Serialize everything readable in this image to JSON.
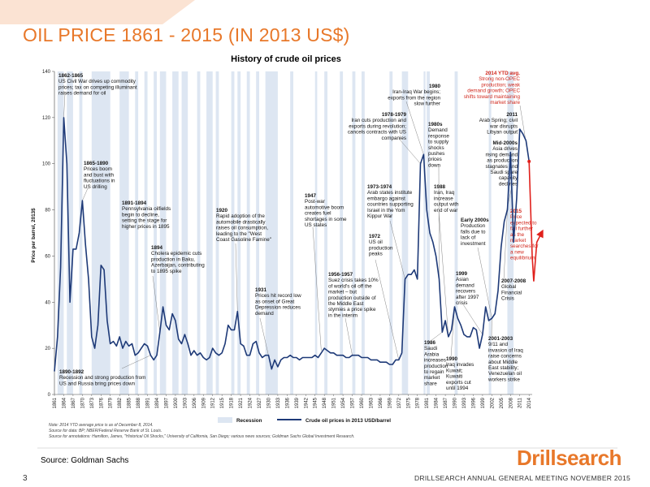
{
  "slide": {
    "title": "OIL PRICE 1861 - 2015  (IN 2013 US$)",
    "source": "Source: Goldman Sachs",
    "page_number": "3",
    "footer": "DRILLSEARCH ANNUAL GENERAL MEETING NOVEMBER  2015",
    "logo_text": "Drillsearch",
    "accent_color": "#e8782a"
  },
  "chart_data": {
    "type": "line",
    "title": "History of crude oil prices",
    "ylabel": "Price per barrel, 2013$",
    "ylim": [
      0,
      140
    ],
    "xlim": [
      1861,
      2015
    ],
    "yticks": [
      0,
      20,
      40,
      60,
      80,
      100,
      120,
      140
    ],
    "xticks": [
      "1861",
      "1864",
      "1867",
      "1870",
      "1873",
      "1876",
      "1879",
      "1882",
      "1885",
      "1888",
      "1891",
      "1894",
      "1897",
      "1900",
      "1903",
      "1906",
      "1909",
      "1912",
      "1915",
      "1918",
      "1921",
      "1924",
      "1927",
      "1930",
      "1933",
      "1936",
      "1939",
      "1942",
      "1945",
      "1948",
      "1951",
      "1954",
      "1957",
      "1960",
      "1963",
      "1966",
      "1969",
      "1972",
      "1975",
      "1978",
      "1981",
      "1984",
      "1987",
      "1990",
      "1993",
      "1996",
      "1999",
      "2002",
      "2005",
      "2008",
      "2011",
      "2014"
    ],
    "legend": [
      "Recession",
      "Crude oil prices in 2013 USD/barrel"
    ],
    "line_color": "#1e3a78",
    "recession_color": "#dde6f2",
    "forecast_color": "#e0201b",
    "series": [
      {
        "name": "Crude oil prices in 2013 USD/barrel",
        "x": [
          1861,
          1862,
          1863,
          1864,
          1865,
          1866,
          1867,
          1868,
          1869,
          1870,
          1871,
          1872,
          1873,
          1874,
          1875,
          1876,
          1877,
          1878,
          1879,
          1880,
          1881,
          1882,
          1883,
          1884,
          1885,
          1886,
          1887,
          1888,
          1889,
          1890,
          1891,
          1892,
          1893,
          1894,
          1895,
          1896,
          1897,
          1898,
          1899,
          1900,
          1901,
          1902,
          1903,
          1904,
          1905,
          1906,
          1907,
          1908,
          1909,
          1910,
          1911,
          1912,
          1913,
          1914,
          1915,
          1916,
          1917,
          1918,
          1919,
          1920,
          1921,
          1922,
          1923,
          1924,
          1925,
          1926,
          1927,
          1928,
          1929,
          1930,
          1931,
          1932,
          1933,
          1934,
          1935,
          1936,
          1937,
          1938,
          1939,
          1940,
          1941,
          1942,
          1943,
          1944,
          1945,
          1946,
          1947,
          1948,
          1949,
          1950,
          1951,
          1952,
          1953,
          1954,
          1955,
          1956,
          1957,
          1958,
          1959,
          1960,
          1961,
          1962,
          1963,
          1964,
          1965,
          1966,
          1967,
          1968,
          1969,
          1970,
          1971,
          1972,
          1973,
          1974,
          1975,
          1976,
          1977,
          1978,
          1979,
          1980,
          1981,
          1982,
          1983,
          1984,
          1985,
          1986,
          1987,
          1988,
          1989,
          1990,
          1991,
          1992,
          1993,
          1994,
          1995,
          1996,
          1997,
          1998,
          1999,
          2000,
          2001,
          2002,
          2003,
          2004,
          2005,
          2006,
          2007,
          2008,
          2009,
          2010,
          2011,
          2012,
          2013,
          2014
        ],
        "values": [
          10,
          25,
          55,
          120,
          100,
          40,
          63,
          63,
          70,
          84,
          65,
          50,
          25,
          20,
          30,
          56,
          54,
          32,
          22,
          23,
          21,
          25,
          20,
          23,
          21,
          22,
          17,
          18,
          20,
          22,
          21,
          17,
          15,
          17,
          27,
          38,
          30,
          28,
          35,
          32,
          24,
          22,
          26,
          22,
          17,
          19,
          17,
          18,
          16,
          15,
          16,
          20,
          18,
          17,
          18,
          22,
          30,
          28,
          28,
          36,
          22,
          21,
          17,
          17,
          22,
          23,
          18,
          16,
          17,
          17,
          11,
          15,
          12,
          15,
          16,
          16,
          17,
          16,
          16,
          15,
          16,
          16,
          16,
          16,
          17,
          16,
          18,
          20,
          19,
          18,
          18,
          17,
          17,
          17,
          16,
          16,
          17,
          17,
          17,
          16,
          16,
          16,
          15,
          15,
          15,
          14,
          14,
          14,
          13,
          13,
          15,
          15,
          18,
          50,
          52,
          52,
          54,
          50,
          100,
          104,
          80,
          70,
          66,
          60,
          50,
          27,
          32,
          25,
          28,
          38,
          33,
          30,
          26,
          25,
          25,
          29,
          28,
          20,
          26,
          38,
          32,
          33,
          35,
          45,
          64,
          75,
          80,
          105,
          66,
          85,
          115,
          113,
          110,
          101
        ]
      },
      {
        "name": "",
        "x": [
          2014,
          2015,
          2015.5,
          2016.5,
          2018
        ],
        "values": [
          101,
          60,
          49,
          66,
          70
        ]
      }
    ],
    "recessions": [
      [
        1862,
        1864
      ],
      [
        1865,
        1867
      ],
      [
        1869,
        1870
      ],
      [
        1873,
        1879
      ],
      [
        1882,
        1885
      ],
      [
        1887,
        1888
      ],
      [
        1890,
        1891
      ],
      [
        1893,
        1894
      ],
      [
        1895,
        1897
      ],
      [
        1899,
        1901
      ],
      [
        1902,
        1904
      ],
      [
        1907,
        1908
      ],
      [
        1910,
        1912
      ],
      [
        1913,
        1914
      ],
      [
        1918,
        1919
      ],
      [
        1920,
        1921
      ],
      [
        1923,
        1924
      ],
      [
        1926,
        1927
      ],
      [
        1929,
        1933
      ],
      [
        1937,
        1938
      ],
      [
        1945,
        1945.7
      ],
      [
        1948,
        1949
      ],
      [
        1953,
        1954
      ],
      [
        1957,
        1958
      ],
      [
        1960,
        1961
      ],
      [
        1969,
        1970
      ],
      [
        1973,
        1975
      ],
      [
        1980,
        1980.6
      ],
      [
        1981,
        1982
      ],
      [
        1990,
        1991
      ],
      [
        2001,
        2001.8
      ],
      [
        2007,
        2009
      ]
    ],
    "annotations": [
      {
        "year_range": "1862-1865",
        "text": [
          "US Civil War drives up commodity",
          "prices; tax on competing illuminant",
          "raises demand for oil"
        ]
      },
      {
        "year_range": "1865-1890",
        "text": [
          "Prices boom",
          "and bust with",
          "fluctuations in",
          "US drilling"
        ]
      },
      {
        "year_range": "1891-1894",
        "text": [
          "Pennsylvania oilfields",
          "begin to decline,",
          "setting the stage for",
          "higher prices in 1895"
        ]
      },
      {
        "year_range": "1894",
        "text": [
          "Cholera epidemic cuts",
          "production in Baku,",
          "Azerbaijan, contributing",
          "to 1895 spike"
        ]
      },
      {
        "year_range": "1890-1892",
        "text": [
          "Recession and strong production from",
          "US and Russia bring prices down"
        ]
      },
      {
        "year_range": "1920",
        "text": [
          "Rapid adoption of the",
          "automobile drastically",
          "raises oil consumption,",
          "leading to the \"West",
          "Coast Gasoline Famine\""
        ]
      },
      {
        "year_range": "1931",
        "text": [
          "Prices hit record low",
          "as onset of Great",
          "Depression reduces",
          "demand"
        ]
      },
      {
        "year_range": "1947",
        "text": [
          "Post-war",
          "automotive boom",
          "creates fuel",
          "shortages in some",
          "US states"
        ]
      },
      {
        "year_range": "1956-1957",
        "text": [
          "Suez crisis takes 10%",
          "of world's oil off the",
          "market – but",
          "production outside of",
          "the Middle East",
          "stymies a price spike",
          "in the interim"
        ]
      },
      {
        "year_range": "1972",
        "text": [
          "US oil",
          "production",
          "peaks"
        ]
      },
      {
        "year_range": "1973-1974",
        "text": [
          "Arab states institute",
          "embargo against",
          "countries supporting",
          "Israel in the Yom",
          "Kippur War"
        ]
      },
      {
        "year_range": "1978-1979",
        "text": [
          "Iran cuts production and",
          "exports during revolution;",
          "cancels contracts with US",
          "companies"
        ]
      },
      {
        "year_range": "1980",
        "text": [
          "Iran-Iraq War begins;",
          "exports from the region",
          "slow further"
        ]
      },
      {
        "year_range": "1980s",
        "text": [
          "Demand",
          "response",
          "to supply",
          "shocks",
          "pushes",
          "prices",
          "down"
        ]
      },
      {
        "year_range": "1988",
        "text": [
          "Iran, Iraq",
          "increase",
          "output with",
          "end of war"
        ]
      },
      {
        "year_range": "1986",
        "text": [
          "Saudi",
          "Arabia",
          "increases",
          "production",
          "to regain",
          "market",
          "share"
        ]
      },
      {
        "year_range": "1990",
        "text": [
          "Iraq invades",
          "Kuwait;",
          "Kuwaiti",
          "exports cut",
          "until 1994"
        ]
      },
      {
        "year_range": "1999",
        "text": [
          "Asian",
          "demand",
          "recovers",
          "after 1997",
          "crisis"
        ]
      },
      {
        "year_range": "Early 2000s",
        "text": [
          "Production",
          "falls due to",
          "lack of",
          "investment"
        ]
      },
      {
        "year_range": "2001-2003",
        "text": [
          "9/11 and",
          "invasion of Iraq",
          "raise concerns",
          "about Middle",
          "East stability;",
          "Venezuelan oil",
          "workers strike"
        ]
      },
      {
        "year_range": "2007-2008",
        "text": [
          "Global",
          "Financial",
          "Crisis"
        ]
      },
      {
        "year_range": "Mid-2000s",
        "text": [
          "Asia drives",
          "rising demand",
          "as production",
          "stagnates and",
          "Saudi spare",
          "capacity",
          "declines"
        ]
      },
      {
        "year_range": "2011",
        "text": [
          "Arab Spring; civil",
          "war disrupts",
          "Libyan output"
        ]
      },
      {
        "year_range": "2014 YTD avg.",
        "text": [
          "Strong non-OPEC",
          "production; weak",
          "demand growth; OPEC",
          "shifts toward maintaining",
          "market share"
        ]
      },
      {
        "year_range": "2015",
        "text": [
          "Price",
          "expected to",
          "fall further",
          "as the",
          "market",
          "searches for",
          "a new",
          "equilibrium"
        ]
      }
    ],
    "notes": [
      "Note: 2014 YTD average price is as of December 8, 2014.",
      "Source for data: BP; NBER/Federal Reserve Bank of St. Louis.",
      "Source for annotations: Hamilton, James, \"Historical Oil Shocks,\" University of California, San Diego; various news sources; Goldman Sachs Global Investment Research."
    ]
  }
}
